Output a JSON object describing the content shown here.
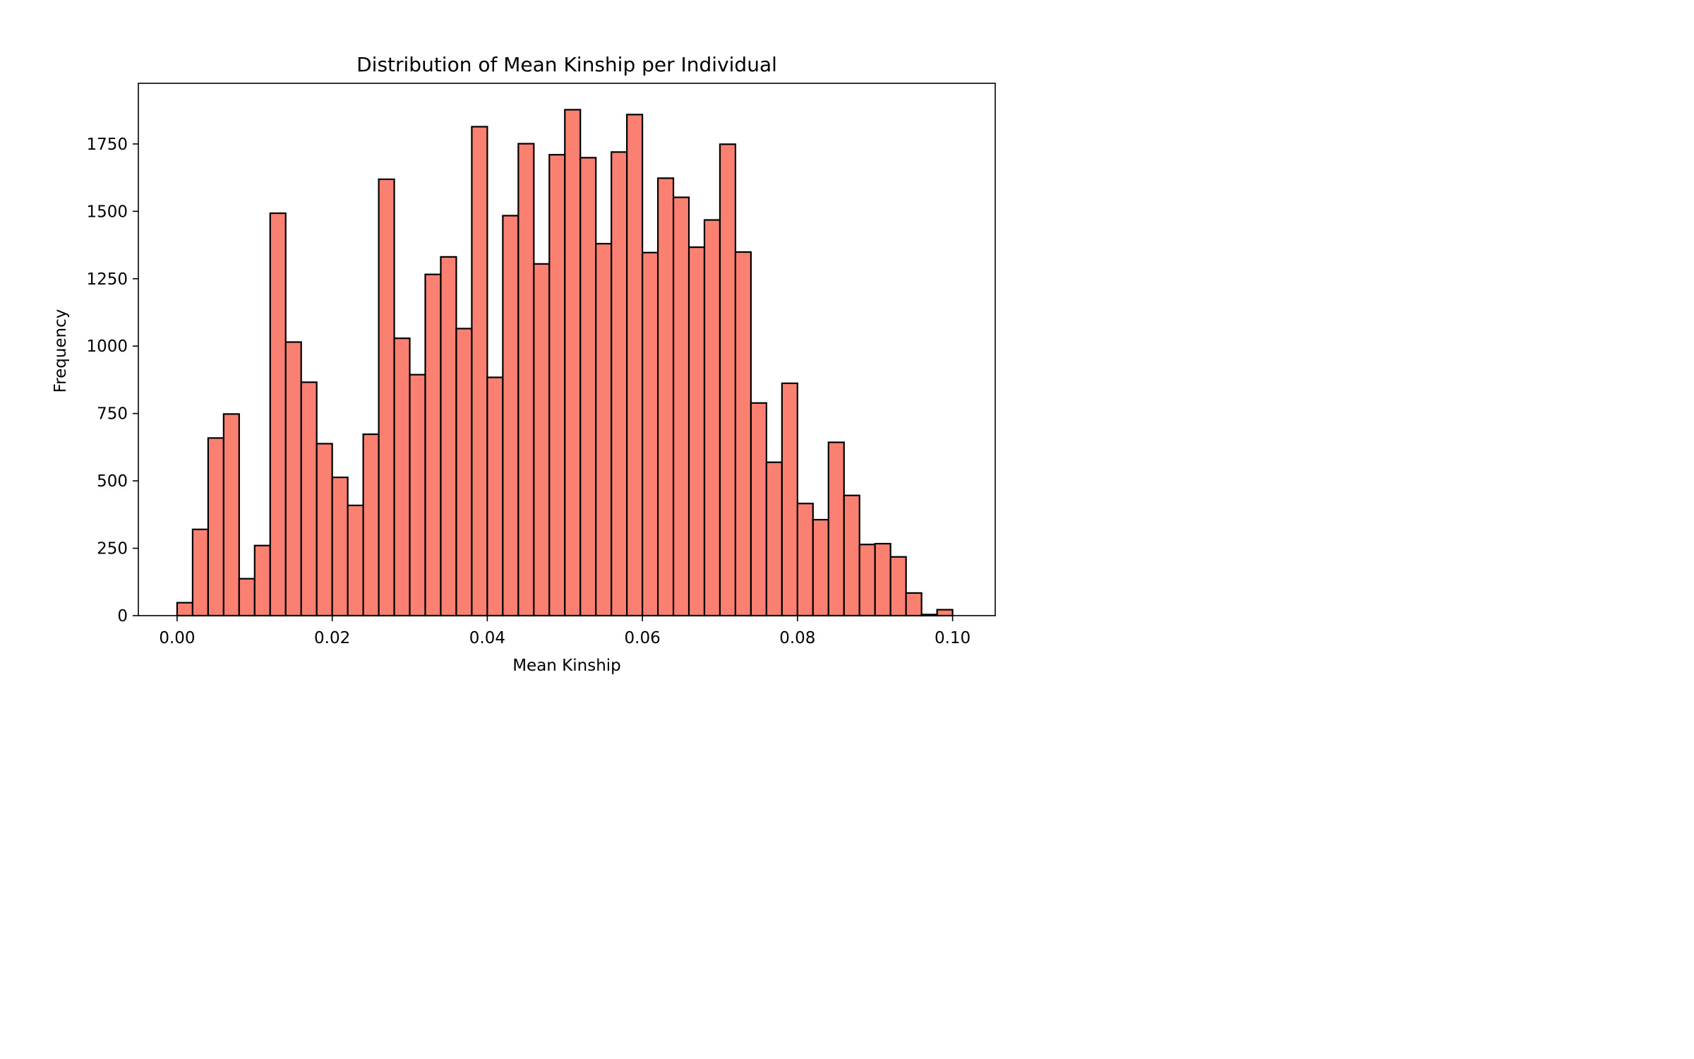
{
  "chart_data": {
    "type": "bar",
    "subtype": "histogram",
    "title": "Distribution of Mean Kinship per Individual",
    "xlabel": "Mean Kinship",
    "ylabel": "Frequency",
    "xlim": [
      -0.005,
      0.1055
    ],
    "ylim": [
      0,
      1975
    ],
    "xticks": [
      0.0,
      0.02,
      0.04,
      0.06,
      0.08,
      0.1
    ],
    "xtick_labels": [
      "0.00",
      "0.02",
      "0.04",
      "0.06",
      "0.08",
      "0.10"
    ],
    "yticks": [
      0,
      250,
      500,
      750,
      1000,
      1250,
      1500,
      1750
    ],
    "ytick_labels": [
      "0",
      "250",
      "500",
      "750",
      "1000",
      "1250",
      "1500",
      "1750"
    ],
    "bin_start": 0.0,
    "bin_width": 0.002,
    "values": [
      48,
      320,
      659,
      748,
      137,
      260,
      1493,
      1015,
      866,
      638,
      513,
      409,
      673,
      1619,
      1029,
      894,
      1266,
      1331,
      1065,
      1814,
      884,
      1484,
      1751,
      1305,
      1710,
      1877,
      1699,
      1380,
      1720,
      1859,
      1347,
      1623,
      1552,
      1367,
      1468,
      1749,
      1349,
      789,
      569,
      862,
      416,
      356,
      643,
      446,
      264,
      267,
      218,
      84,
      4,
      22
    ],
    "grid": false,
    "legend": "none",
    "colors": {
      "bar_fill": "#fa8072",
      "bar_edge": "#000000",
      "axes": "#000000"
    }
  }
}
